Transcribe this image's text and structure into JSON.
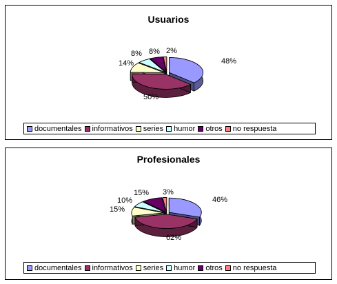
{
  "chart_data": [
    {
      "type": "pie",
      "title": "Usuarios",
      "categories": [
        "documentales",
        "informativos",
        "series",
        "humor",
        "otros",
        "no respuesta"
      ],
      "values": [
        48,
        50,
        14,
        8,
        8,
        2
      ],
      "labels": [
        "48%",
        "50%",
        "14%",
        "8%",
        "8%",
        "2%"
      ],
      "colors": [
        "#9999ff",
        "#993366",
        "#ffffcc",
        "#ccffff",
        "#660066",
        "#ff8080"
      ],
      "legend": "bottom"
    },
    {
      "type": "pie",
      "title": "Profesionales",
      "categories": [
        "documentales",
        "informativos",
        "series",
        "humor",
        "otros",
        "no respuesta"
      ],
      "values": [
        46,
        62,
        15,
        10,
        15,
        3
      ],
      "labels": [
        "46%",
        "62%",
        "15%",
        "10%",
        "15%",
        "3%"
      ],
      "colors": [
        "#9999ff",
        "#993366",
        "#ffffcc",
        "#ccffff",
        "#660066",
        "#ff8080"
      ],
      "legend": "bottom"
    }
  ]
}
